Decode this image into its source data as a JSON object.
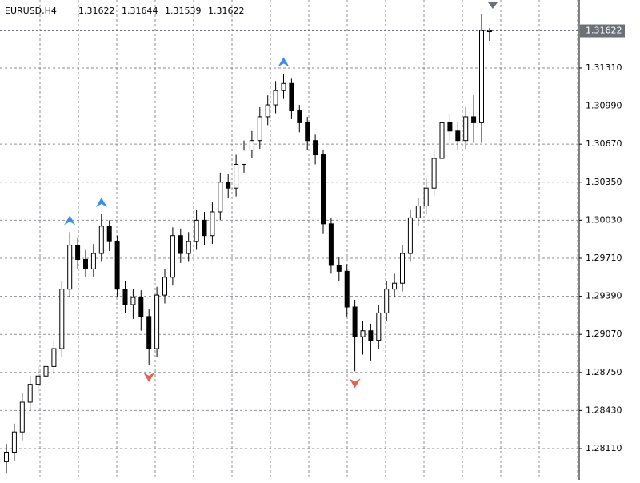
{
  "chart_data": {
    "type": "candlestick",
    "title": "EURUSD,H4",
    "open": [
      1.28,
      1.2808,
      1.2825,
      1.285,
      1.2865,
      1.2872,
      1.288,
      1.2895,
      1.2945,
      1.2982,
      1.297,
      1.2962,
      1.2975,
      1.2998,
      1.2985,
      1.2945,
      1.2932,
      1.2938,
      1.2922,
      1.2895,
      1.294,
      1.2955,
      1.299,
      1.2975,
      1.2985,
      1.3003,
      1.299,
      1.301,
      1.3035,
      1.303,
      1.305,
      1.3062,
      1.307,
      1.309,
      1.31,
      1.3112,
      1.3118,
      1.3095,
      1.3085,
      1.307,
      1.3058,
      1.3,
      1.2965,
      1.296,
      1.293,
      1.2905,
      1.291,
      1.2902,
      1.2925,
      1.2945,
      1.295,
      1.2975,
      1.3005,
      1.3015,
      1.303,
      1.3055,
      1.3085,
      1.3078,
      1.307,
      1.309,
      1.3085,
      1.31622
    ],
    "high": [
      1.2815,
      1.2832,
      1.2858,
      1.2872,
      1.288,
      1.2888,
      1.2902,
      1.2952,
      1.2993,
      1.2988,
      1.2978,
      1.2983,
      1.3008,
      1.3003,
      1.299,
      1.2952,
      1.2945,
      1.2944,
      1.2928,
      1.2947,
      1.2962,
      1.2997,
      1.2996,
      1.2993,
      1.3012,
      1.301,
      1.3018,
      1.3043,
      1.3042,
      1.3058,
      1.307,
      1.3078,
      1.3098,
      1.3108,
      1.312,
      1.3126,
      1.3122,
      1.31,
      1.309,
      1.3075,
      1.3062,
      1.3005,
      1.2972,
      1.2966,
      1.2936,
      1.2918,
      1.2916,
      1.2932,
      1.2952,
      1.2958,
      1.2982,
      1.3012,
      1.3022,
      1.3038,
      1.3063,
      1.3094,
      1.3092,
      1.3086,
      1.3098,
      1.3108,
      1.3176,
      1.31644
    ],
    "low": [
      1.279,
      1.2801,
      1.2818,
      1.2843,
      1.2858,
      1.2865,
      1.2873,
      1.2888,
      1.2938,
      1.2962,
      1.2955,
      1.2955,
      1.2968,
      1.2977,
      1.2938,
      1.2925,
      1.292,
      1.291,
      1.2881,
      1.2888,
      1.2933,
      1.2948,
      1.2967,
      1.2968,
      1.2978,
      1.2982,
      1.2983,
      1.3003,
      1.3022,
      1.3023,
      1.3043,
      1.3055,
      1.3063,
      1.3083,
      1.3093,
      1.3105,
      1.3088,
      1.3077,
      1.3062,
      1.305,
      1.2992,
      1.2958,
      1.2952,
      1.2922,
      1.2876,
      1.289,
      1.2885,
      1.2895,
      1.2918,
      1.2938,
      1.2943,
      1.2968,
      1.2998,
      1.3008,
      1.3023,
      1.3048,
      1.307,
      1.3062,
      1.3063,
      1.3068,
      1.3068,
      1.31539
    ],
    "close": [
      1.2808,
      1.2825,
      1.285,
      1.2865,
      1.2872,
      1.288,
      1.2895,
      1.2945,
      1.2982,
      1.297,
      1.2962,
      1.2975,
      1.2998,
      1.2985,
      1.2945,
      1.2932,
      1.2938,
      1.2922,
      1.2895,
      1.294,
      1.2955,
      1.299,
      1.2975,
      1.2985,
      1.3003,
      1.299,
      1.301,
      1.3035,
      1.303,
      1.305,
      1.3062,
      1.307,
      1.309,
      1.31,
      1.3112,
      1.3118,
      1.3095,
      1.3085,
      1.307,
      1.3058,
      1.3,
      1.2965,
      1.296,
      1.293,
      1.2905,
      1.291,
      1.2902,
      1.2925,
      1.2945,
      1.295,
      1.2975,
      1.3005,
      1.3015,
      1.303,
      1.3055,
      1.3085,
      1.3078,
      1.307,
      1.309,
      1.3085,
      1.31622,
      1.31622
    ],
    "fractals_up": [
      8,
      12,
      35
    ],
    "fractals_down": [
      18,
      44
    ],
    "ylim": [
      1.27848,
      1.31881
    ],
    "yticks": [
      {
        "value": 1.2811,
        "label": "1.28110"
      },
      {
        "value": 1.2843,
        "label": "1.28430"
      },
      {
        "value": 1.2875,
        "label": "1.28750"
      },
      {
        "value": 1.2907,
        "label": "1.29070"
      },
      {
        "value": 1.2939,
        "label": "1.29390"
      },
      {
        "value": 1.2971,
        "label": "1.29710"
      },
      {
        "value": 1.3003,
        "label": "1.30030"
      },
      {
        "value": 1.3035,
        "label": "1.30350"
      },
      {
        "value": 1.3067,
        "label": "1.30670"
      },
      {
        "value": 1.3099,
        "label": "1.30990"
      },
      {
        "value": 1.3131,
        "label": "1.31310"
      }
    ],
    "grid": true,
    "bull_color": "#ffffff",
    "bear_color": "#000000",
    "wick_color": "#000000",
    "fractal_up_color": "#3d8fe0",
    "fractal_down_color": "#e8604a"
  }
}
